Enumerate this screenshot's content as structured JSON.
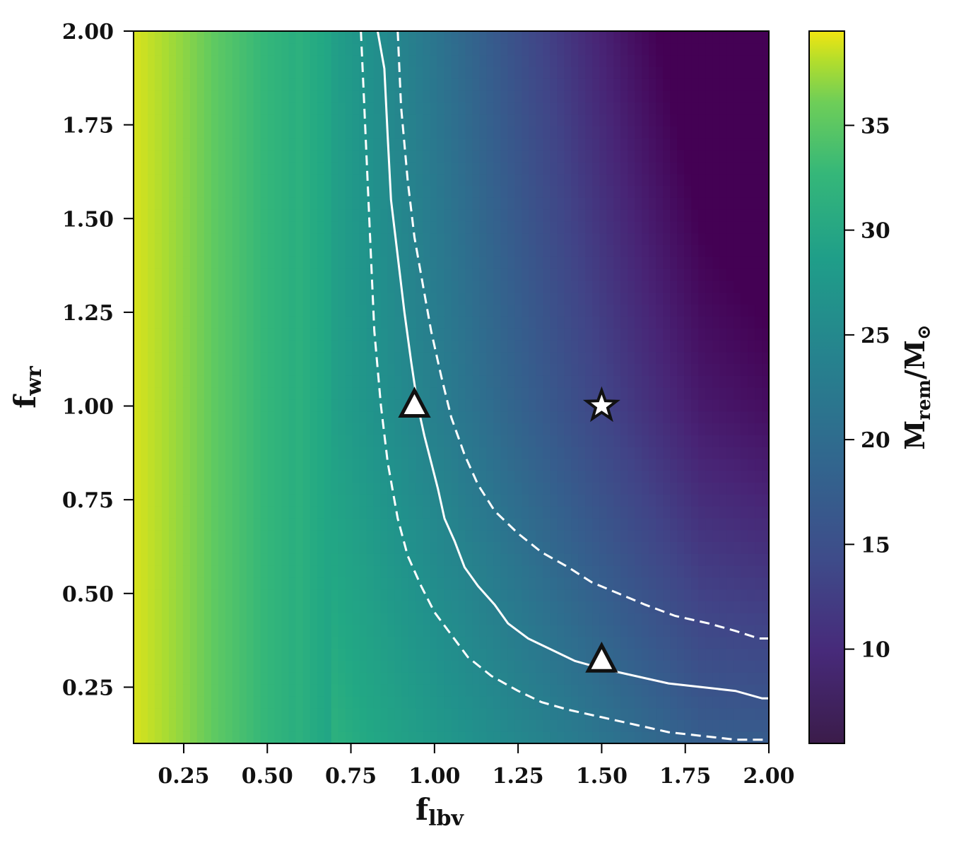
{
  "chart_data": {
    "type": "heatmap",
    "xlabel": {
      "main": "f",
      "sub": "lbv"
    },
    "ylabel": {
      "main": "f",
      "sub": "wr"
    },
    "xlim": [
      0.1,
      2.0
    ],
    "ylim": [
      0.1,
      2.0
    ],
    "x_ticks": [
      0.25,
      0.5,
      0.75,
      1.0,
      1.25,
      1.5,
      1.75,
      2.0
    ],
    "x_tick_labels": [
      "0.25",
      "0.50",
      "0.75",
      "1.00",
      "1.25",
      "1.50",
      "1.75",
      "2.00"
    ],
    "y_ticks": [
      0.25,
      0.5,
      0.75,
      1.0,
      1.25,
      1.5,
      1.75,
      2.0
    ],
    "y_tick_labels": [
      "0.25",
      "0.50",
      "0.75",
      "1.00",
      "1.25",
      "1.50",
      "1.75",
      "2.00"
    ],
    "colorbar": {
      "label": {
        "main": "M",
        "sub": "rem",
        "sep": "/",
        "main2": "M",
        "sub2": "⊙"
      },
      "range": [
        5.5,
        39.5
      ],
      "ticks": [
        10,
        15,
        20,
        25,
        30,
        35
      ],
      "tick_labels": [
        "10",
        "15",
        "20",
        "25",
        "30",
        "35"
      ],
      "colormap": "viridis"
    },
    "grid": false,
    "contours": [
      {
        "name": "solid",
        "style": "solid",
        "points": [
          [
            0.83,
            2.0
          ],
          [
            0.85,
            1.9
          ],
          [
            0.86,
            1.72
          ],
          [
            0.87,
            1.55
          ],
          [
            0.89,
            1.4
          ],
          [
            0.91,
            1.25
          ],
          [
            0.93,
            1.12
          ],
          [
            0.95,
            1.0
          ],
          [
            0.97,
            0.92
          ],
          [
            0.99,
            0.85
          ],
          [
            1.01,
            0.78
          ],
          [
            1.03,
            0.7
          ],
          [
            1.06,
            0.64
          ],
          [
            1.09,
            0.57
          ],
          [
            1.13,
            0.52
          ],
          [
            1.18,
            0.47
          ],
          [
            1.22,
            0.42
          ],
          [
            1.28,
            0.38
          ],
          [
            1.35,
            0.35
          ],
          [
            1.42,
            0.32
          ],
          [
            1.5,
            0.3
          ],
          [
            1.6,
            0.28
          ],
          [
            1.7,
            0.26
          ],
          [
            1.8,
            0.25
          ],
          [
            1.9,
            0.24
          ],
          [
            1.98,
            0.22
          ],
          [
            2.0,
            0.22
          ]
        ]
      },
      {
        "name": "dashed-upper",
        "style": "dashed",
        "points": [
          [
            0.89,
            2.0
          ],
          [
            0.9,
            1.8
          ],
          [
            0.92,
            1.6
          ],
          [
            0.94,
            1.45
          ],
          [
            0.97,
            1.3
          ],
          [
            0.99,
            1.2
          ],
          [
            1.02,
            1.08
          ],
          [
            1.05,
            0.97
          ],
          [
            1.09,
            0.87
          ],
          [
            1.13,
            0.79
          ],
          [
            1.18,
            0.72
          ],
          [
            1.25,
            0.66
          ],
          [
            1.32,
            0.61
          ],
          [
            1.4,
            0.57
          ],
          [
            1.47,
            0.53
          ],
          [
            1.55,
            0.5
          ],
          [
            1.63,
            0.47
          ],
          [
            1.72,
            0.44
          ],
          [
            1.82,
            0.42
          ],
          [
            1.9,
            0.4
          ],
          [
            1.97,
            0.38
          ],
          [
            2.0,
            0.38
          ]
        ]
      },
      {
        "name": "dashed-lower",
        "style": "dashed",
        "points": [
          [
            0.78,
            2.0
          ],
          [
            0.79,
            1.8
          ],
          [
            0.8,
            1.6
          ],
          [
            0.81,
            1.4
          ],
          [
            0.82,
            1.2
          ],
          [
            0.84,
            1.0
          ],
          [
            0.86,
            0.85
          ],
          [
            0.89,
            0.7
          ],
          [
            0.92,
            0.6
          ],
          [
            0.96,
            0.52
          ],
          [
            1.0,
            0.45
          ],
          [
            1.05,
            0.39
          ],
          [
            1.1,
            0.33
          ],
          [
            1.17,
            0.28
          ],
          [
            1.25,
            0.24
          ],
          [
            1.32,
            0.21
          ],
          [
            1.4,
            0.19
          ],
          [
            1.5,
            0.17
          ],
          [
            1.6,
            0.15
          ],
          [
            1.7,
            0.13
          ],
          [
            1.8,
            0.12
          ],
          [
            1.9,
            0.11
          ],
          [
            2.0,
            0.11
          ]
        ]
      }
    ],
    "markers": [
      {
        "name": "star-marker",
        "shape": "star",
        "x": 1.5,
        "y": 1.0
      },
      {
        "name": "triangle-marker-upper",
        "shape": "triangle",
        "x": 0.94,
        "y": 1.0
      },
      {
        "name": "triangle-marker-lower",
        "shape": "triangle",
        "x": 1.5,
        "y": 0.32
      }
    ]
  }
}
